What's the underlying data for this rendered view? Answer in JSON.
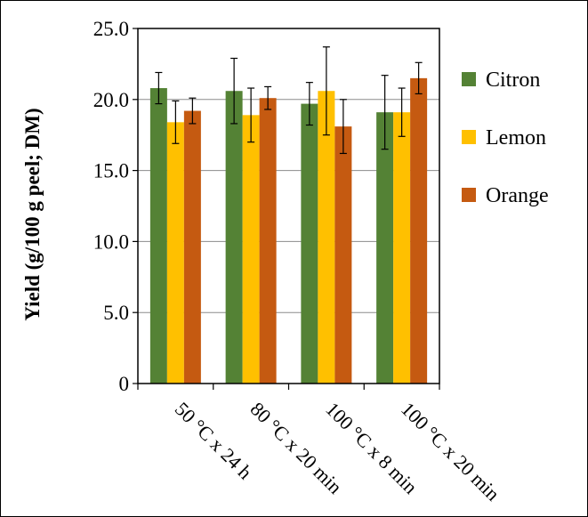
{
  "chart_data": {
    "type": "bar",
    "title": "",
    "xlabel": "",
    "ylabel": "Yield (g/100 g peel; DM)",
    "ylim": [
      0,
      25
    ],
    "grid": true,
    "legend_position": "right",
    "y_ticks": [
      "0",
      "5.0",
      "10.0",
      "15.0",
      "20.0",
      "25.0"
    ],
    "categories": [
      "50 °C x 24 h",
      "80 °C x 20 min",
      "100 °C x 8 min",
      "100 °C x 20 min"
    ],
    "series": [
      {
        "name": "Citron",
        "color": "#548235",
        "values": [
          20.8,
          20.6,
          19.7,
          19.1
        ],
        "errors": [
          1.1,
          2.3,
          1.5,
          2.6
        ]
      },
      {
        "name": "Lemon",
        "color": "#ffc000",
        "values": [
          18.4,
          18.9,
          20.6,
          19.1
        ],
        "errors": [
          1.5,
          1.9,
          3.1,
          1.7
        ]
      },
      {
        "name": "Orange",
        "color": "#c55a11",
        "values": [
          19.2,
          20.1,
          18.1,
          21.5
        ],
        "errors": [
          0.9,
          0.8,
          1.9,
          1.1
        ]
      }
    ]
  }
}
